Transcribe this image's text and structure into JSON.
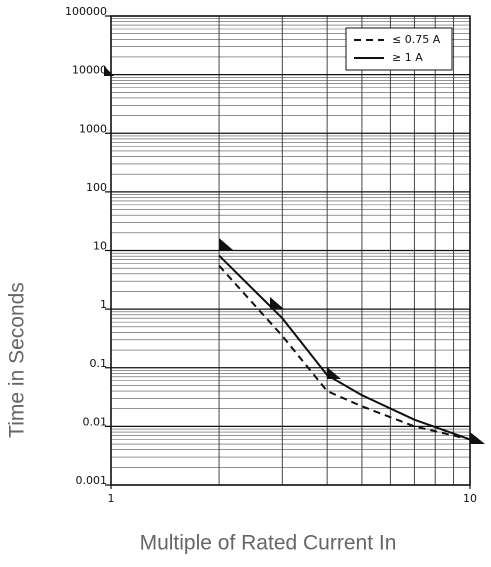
{
  "chart_data": {
    "type": "line",
    "log_x": true,
    "log_y": true,
    "grid": true,
    "minor_grid": true,
    "xlabel": "Multiple of Rated Current In",
    "ylabel": "Time in Seconds",
    "xlim": [
      1,
      10
    ],
    "xticks": [
      1,
      10
    ],
    "ylim": [
      0.001,
      100000
    ],
    "yticks": [
      0.001,
      0.01,
      0.1,
      1,
      10,
      100,
      1000,
      10000,
      100000
    ],
    "legend": "upper right",
    "series": [
      {
        "name": "≤ 0.75 A",
        "color": "#111111",
        "dash": "dashed",
        "x": [
          2,
          3,
          4,
          5,
          7,
          10
        ],
        "values": [
          5.5,
          0.35,
          0.04,
          0.022,
          0.01,
          0.006
        ]
      },
      {
        "name": "≥ 1 A",
        "color": "#111111",
        "dash": "solid",
        "x": [
          2,
          3,
          4,
          5,
          7,
          10
        ],
        "values": [
          8.2,
          0.7,
          0.075,
          0.034,
          0.013,
          0.006
        ]
      }
    ]
  }
}
